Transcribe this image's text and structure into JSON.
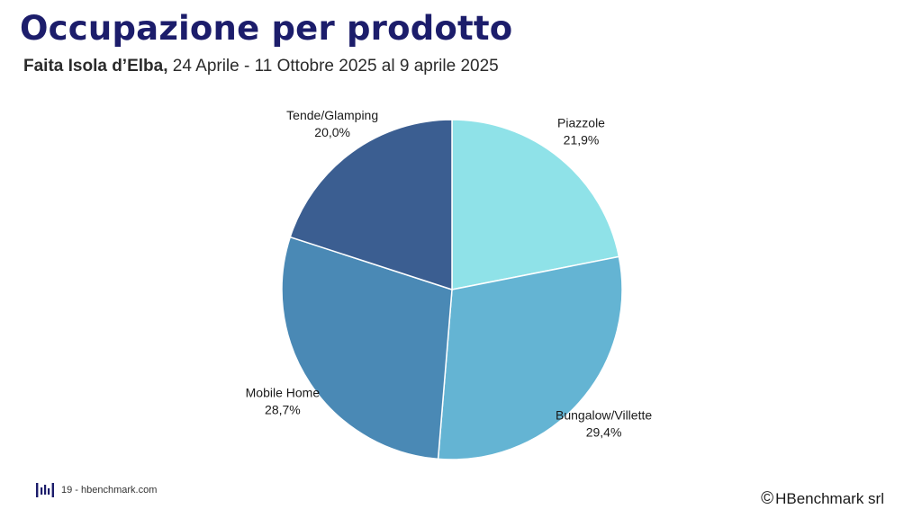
{
  "slide": {
    "title": "Occupazione per prodotto",
    "subtitle_bold": "Faita Isola d’Elba,",
    "subtitle_rest": " 24 Aprile - 11 Ottobre 2025 al 9 aprile 2025"
  },
  "footer": {
    "page_text": "19 - hbenchmark.com",
    "copyright_symbol": "©",
    "copyright_text": "HBenchmark srl",
    "logo_icon": "hbenchmark-logo-icon"
  },
  "chart_data": {
    "type": "pie",
    "title": "",
    "slices": [
      {
        "label": "Piazzole",
        "value_text": "21,9%",
        "value": 21.9,
        "color": "#8fe2e8"
      },
      {
        "label": "Bungalow/Villette",
        "value_text": "29,4%",
        "value": 29.4,
        "color": "#64b4d3"
      },
      {
        "label": "Mobile Home",
        "value_text": "28,7%",
        "value": 28.7,
        "color": "#4a89b5"
      },
      {
        "label": "Tende/Glamping",
        "value_text": "20,0%",
        "value": 20.0,
        "color": "#3b5e91"
      }
    ],
    "start_angle": "12 o'clock",
    "direction": "clockwise",
    "legend": "none"
  }
}
